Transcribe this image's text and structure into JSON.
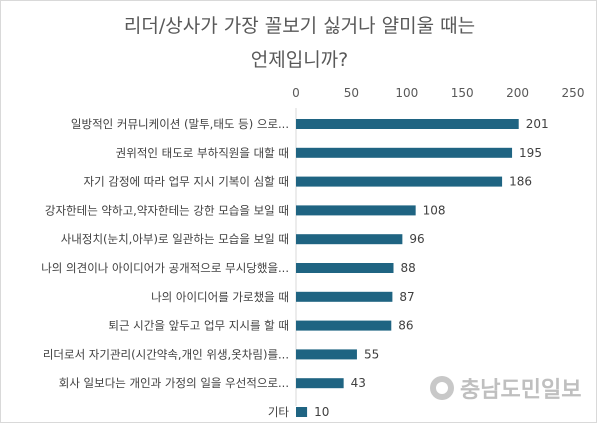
{
  "chart_data": {
    "type": "bar",
    "orientation": "horizontal",
    "title_lines": [
      "리더/상사가 가장 꼴보기 싫거나 얄미울 때는",
      "언제입니까?"
    ],
    "categories": [
      "일방적인 커뮤니케이션 (말투,태도 등) 으로...",
      "권위적인 태도로 부하직원을 대할 때",
      "자기 감정에 따라 업무 지시 기복이 심할 때",
      "강자한테는 약하고,약자한테는 강한 모습을 보일 때",
      "사내정치(눈치,아부)로 일관하는 모습을 보일 때",
      "나의 의견이나 아이디어가 공개적으로 무시당했을...",
      "나의 아이디어를 가로챘을 때",
      "퇴근 시간을 앞두고 업무 지시를 할 때",
      "리더로서 자기관리(시간약속,개인 위생,옷차림)를...",
      "회사 일보다는 개인과 가정의 일을 우선적으로...",
      "기타"
    ],
    "values": [
      201,
      195,
      186,
      108,
      96,
      88,
      87,
      86,
      55,
      43,
      10
    ],
    "xlim": [
      0,
      250
    ],
    "ticks": [
      "0",
      "50",
      "100",
      "150",
      "200",
      "250"
    ],
    "axis_position": "top",
    "bar_color": "#1f6482",
    "grid": false,
    "legend": "none"
  },
  "watermark_text": "충남도민일보"
}
